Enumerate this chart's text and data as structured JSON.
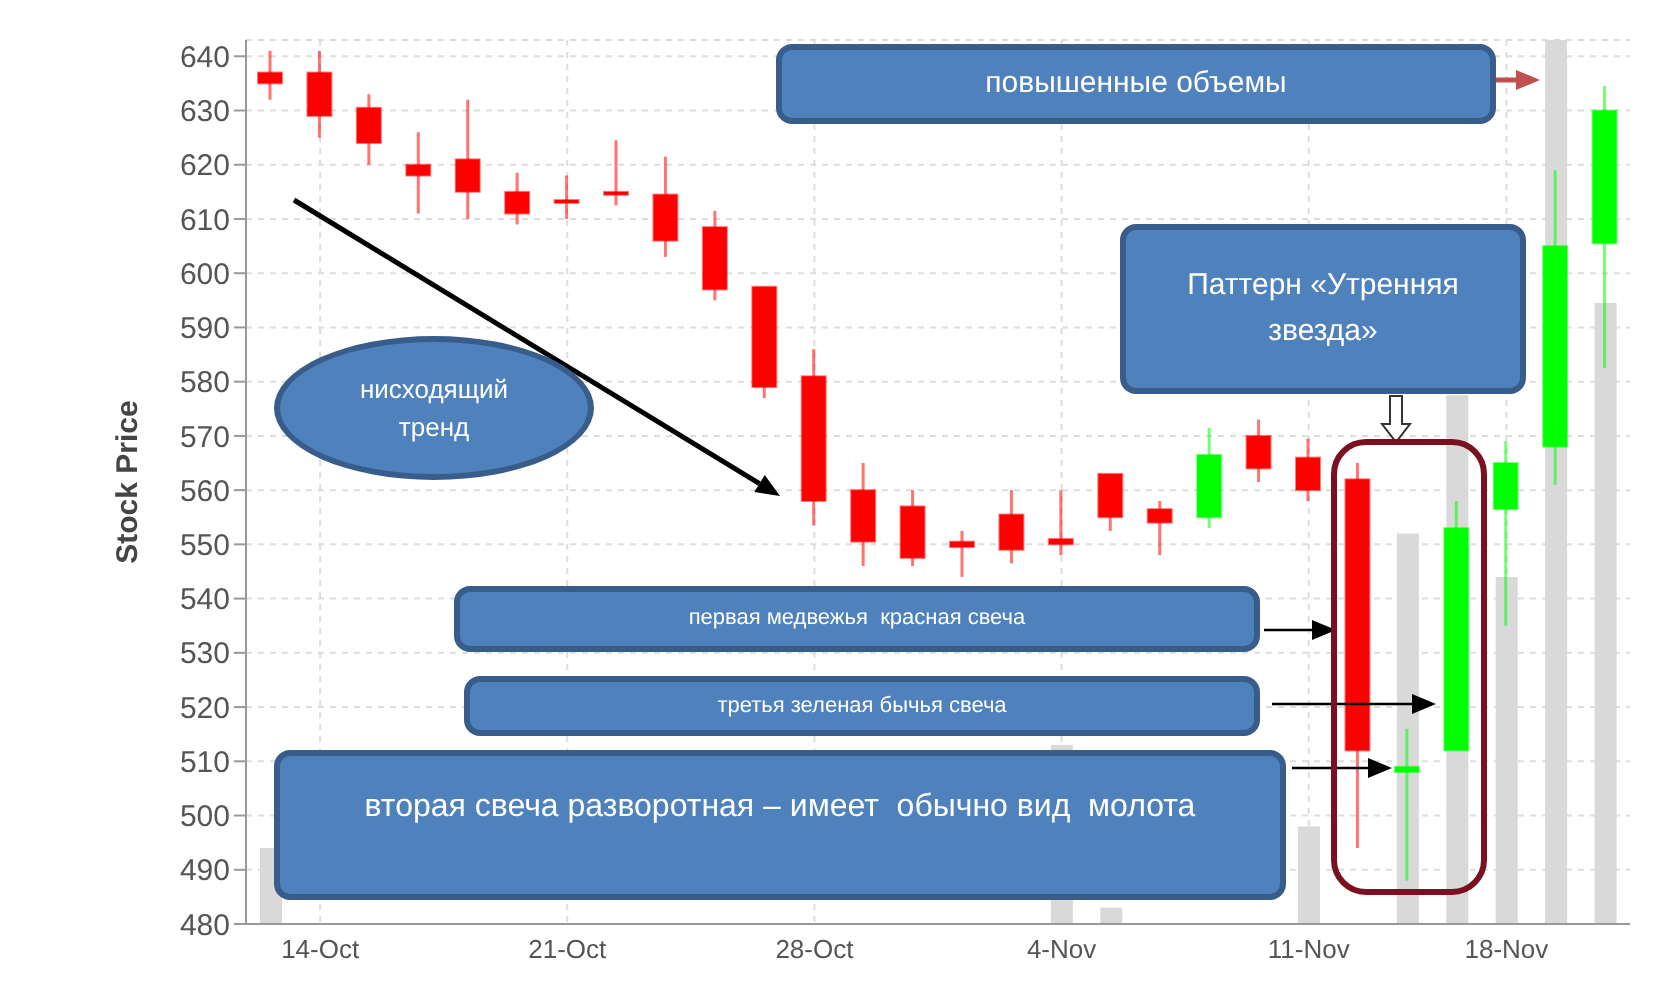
{
  "chart_data": {
    "type": "candlestick",
    "ylabel": "Stock Price",
    "categories": [
      null,
      "14-Oct",
      null,
      null,
      null,
      null,
      "21-Oct",
      null,
      null,
      null,
      null,
      "28-Oct",
      null,
      null,
      null,
      null,
      "4-Nov",
      null,
      null,
      null,
      null,
      "11-Nov",
      null,
      null,
      null,
      "18-Nov",
      null,
      null
    ],
    "ohlc": [
      [
        637,
        641,
        632,
        635
      ],
      [
        637,
        641,
        625,
        629
      ],
      [
        630.5,
        633,
        620,
        624
      ],
      [
        620,
        626,
        611,
        618
      ],
      [
        621,
        632,
        610,
        615
      ],
      [
        615,
        618.5,
        609,
        611
      ],
      [
        613.5,
        618,
        610,
        613
      ],
      [
        615,
        624.5,
        612.5,
        614.5
      ],
      [
        614.5,
        621.5,
        603,
        606
      ],
      [
        608.5,
        611.5,
        595,
        597
      ],
      [
        597.5,
        597.5,
        577,
        579
      ],
      [
        581,
        586,
        553.5,
        558
      ],
      [
        560,
        565,
        546,
        550.5
      ],
      [
        557,
        560,
        546,
        547.5
      ],
      [
        550.5,
        552.5,
        544,
        549.5
      ],
      [
        555.5,
        560,
        546.5,
        549
      ],
      [
        551,
        560,
        548,
        550
      ],
      [
        563,
        563,
        552.5,
        555
      ],
      [
        556.5,
        558,
        548,
        554
      ],
      [
        555,
        571.5,
        553,
        566.5
      ],
      [
        570,
        573,
        561.5,
        564
      ],
      [
        566,
        569.5,
        558,
        560
      ],
      [
        562,
        565,
        494,
        512
      ],
      [
        508,
        516,
        488,
        509
      ],
      [
        512,
        558,
        512,
        553
      ],
      [
        556.5,
        569,
        535,
        565
      ],
      [
        568,
        619,
        561,
        605
      ],
      [
        605.5,
        634.5,
        582.5,
        630
      ]
    ],
    "colors": [
      "#ff0000",
      "#ff0000",
      "#ff0000",
      "#ff0000",
      "#ff0000",
      "#ff0000",
      "#ff0000",
      "#ff0000",
      "#ff0000",
      "#ff0000",
      "#ff0000",
      "#ff0000",
      "#ff0000",
      "#ff0000",
      "#ff0000",
      "#ff0000",
      "#ff0000",
      "#ff0000",
      "#ff0000",
      "#00ff00",
      "#ff0000",
      "#ff0000",
      "#ff0000",
      "#00ff00",
      "#00ff00",
      "#00ff00",
      "#00ff00",
      "#00ff00"
    ],
    "series": [
      {
        "type": "bar",
        "color": "#d9d9d9",
        "values": [
          494,
          null,
          null,
          null,
          null,
          null,
          null,
          null,
          null,
          null,
          null,
          null,
          null,
          null,
          null,
          null,
          513,
          483,
          null,
          null,
          null,
          498,
          null,
          552,
          577.5,
          544,
          643,
          594.5
        ]
      }
    ],
    "ylim": [
      480,
      643
    ],
    "yticks": [
      480,
      490,
      500,
      510,
      520,
      530,
      540,
      550,
      560,
      570,
      580,
      590,
      600,
      610,
      620,
      630,
      640
    ],
    "grid": true,
    "annotations": [
      "повышенные объемы",
      "Паттерн «Утренняя звезда»",
      "нисходящий тренд",
      "первая медвежья  красная свеча",
      "третья зеленая бычья свеча",
      "вторая свеча разворотная – имеет  обычно вид  молота"
    ]
  }
}
